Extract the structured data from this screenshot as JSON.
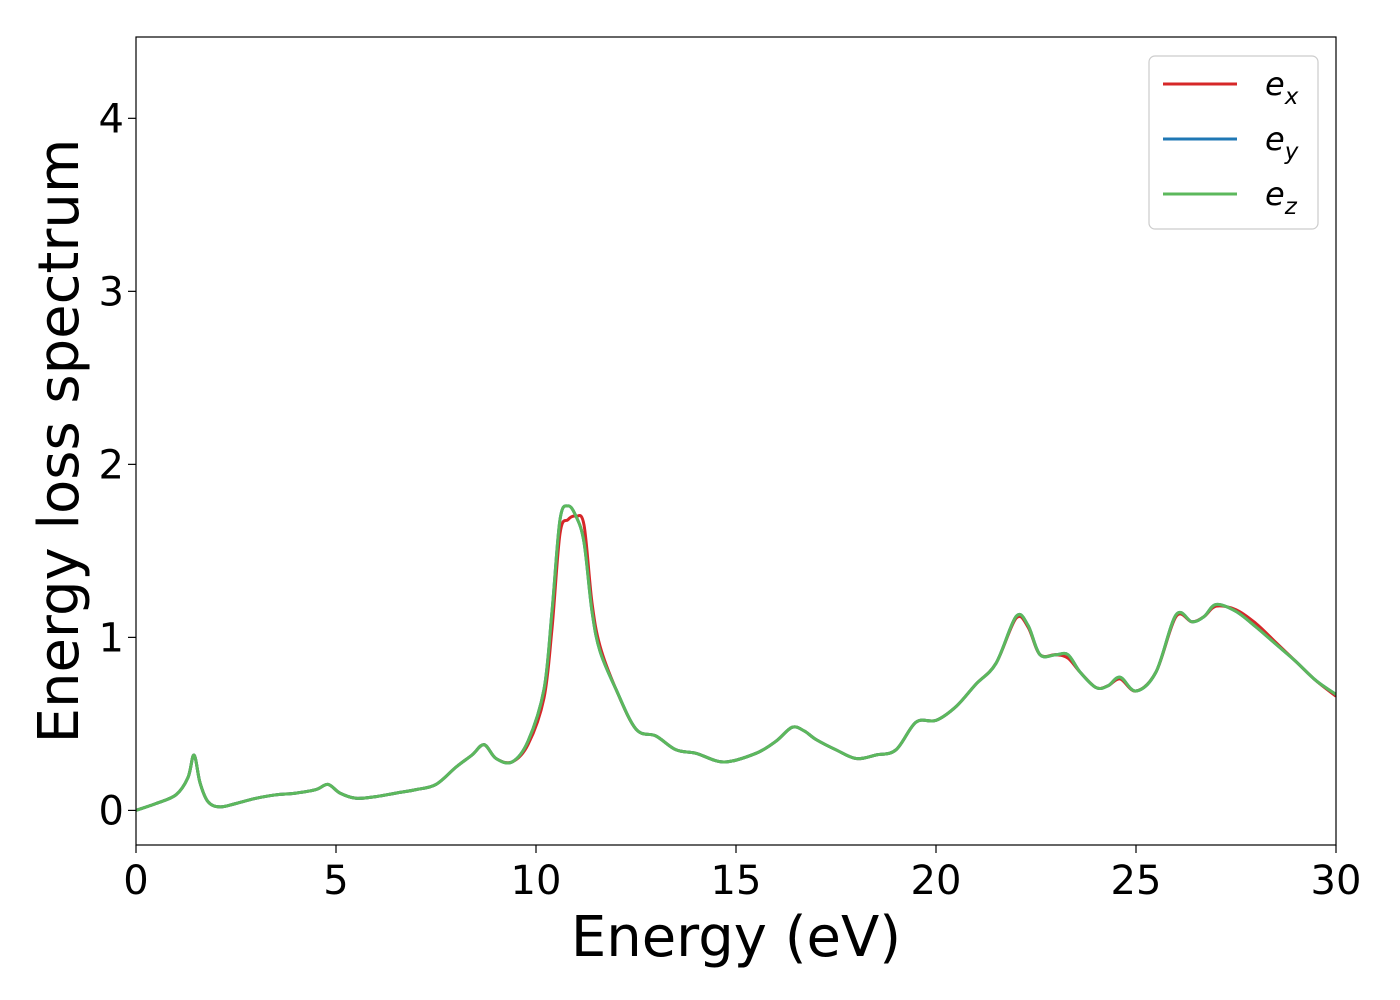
{
  "chart_data": {
    "type": "line",
    "xlabel": "Energy (eV)",
    "ylabel": "Energy loss spectrum",
    "xlim": [
      0,
      30
    ],
    "ylim": [
      -0.2,
      4.47
    ],
    "xticks": [
      0,
      5,
      10,
      15,
      20,
      25,
      30
    ],
    "yticks": [
      0,
      1,
      2,
      3,
      4
    ],
    "grid": false,
    "legend_position": "top-right",
    "series": [
      {
        "name": "e",
        "subscript": "x",
        "color": "#d62728",
        "x": [
          0,
          0.5,
          1.0,
          1.3,
          1.45,
          1.6,
          1.8,
          2.1,
          2.5,
          3.0,
          3.5,
          4.0,
          4.5,
          4.8,
          5.1,
          5.5,
          6.0,
          6.5,
          7.0,
          7.5,
          8.0,
          8.4,
          8.7,
          9.0,
          9.4,
          9.8,
          10.2,
          10.4,
          10.6,
          10.8,
          11.0,
          11.2,
          11.4,
          11.6,
          12.0,
          12.5,
          13.0,
          13.5,
          14.0,
          14.7,
          15.5,
          16.0,
          16.4,
          16.7,
          17.0,
          17.5,
          18.0,
          18.5,
          19.0,
          19.5,
          20.0,
          20.5,
          21.0,
          21.5,
          22.0,
          22.3,
          22.6,
          23.0,
          23.3,
          23.6,
          24.0,
          24.3,
          24.6,
          25.0,
          25.5,
          26.0,
          26.4,
          26.7,
          27.0,
          27.5,
          28.0,
          28.5,
          29.0,
          29.5,
          30.0
        ],
        "values": [
          0.0,
          0.04,
          0.09,
          0.19,
          0.32,
          0.16,
          0.05,
          0.02,
          0.04,
          0.07,
          0.09,
          0.1,
          0.12,
          0.15,
          0.1,
          0.07,
          0.08,
          0.1,
          0.12,
          0.15,
          0.25,
          0.32,
          0.38,
          0.3,
          0.28,
          0.38,
          0.65,
          1.05,
          1.6,
          1.68,
          1.7,
          1.65,
          1.2,
          0.95,
          0.7,
          0.47,
          0.43,
          0.35,
          0.33,
          0.28,
          0.33,
          0.4,
          0.48,
          0.46,
          0.41,
          0.35,
          0.3,
          0.32,
          0.35,
          0.51,
          0.52,
          0.6,
          0.73,
          0.85,
          1.11,
          1.06,
          0.9,
          0.9,
          0.88,
          0.8,
          0.71,
          0.72,
          0.76,
          0.69,
          0.8,
          1.12,
          1.09,
          1.12,
          1.18,
          1.16,
          1.08,
          0.97,
          0.86,
          0.75,
          0.66
        ]
      },
      {
        "name": "e",
        "subscript": "y",
        "color": "#1f77b4",
        "x": [
          0,
          0.5,
          1.0,
          1.3,
          1.45,
          1.6,
          1.8,
          2.1,
          2.5,
          3.0,
          3.5,
          4.0,
          4.5,
          4.8,
          5.1,
          5.5,
          6.0,
          6.5,
          7.0,
          7.5,
          8.0,
          8.4,
          8.7,
          9.0,
          9.4,
          9.8,
          10.2,
          10.4,
          10.6,
          10.8,
          11.0,
          11.2,
          11.4,
          11.6,
          12.0,
          12.5,
          13.0,
          13.5,
          14.0,
          14.7,
          15.5,
          16.0,
          16.4,
          16.7,
          17.0,
          17.5,
          18.0,
          18.5,
          19.0,
          19.5,
          20.0,
          20.5,
          21.0,
          21.5,
          22.0,
          22.3,
          22.6,
          23.0,
          23.3,
          23.6,
          24.0,
          24.3,
          24.6,
          25.0,
          25.5,
          26.0,
          26.4,
          26.7,
          27.0,
          27.5,
          28.0,
          28.5,
          29.0,
          29.5,
          30.0
        ],
        "values": [
          0.0,
          0.04,
          0.09,
          0.19,
          0.32,
          0.16,
          0.05,
          0.02,
          0.04,
          0.07,
          0.09,
          0.1,
          0.12,
          0.15,
          0.1,
          0.07,
          0.08,
          0.1,
          0.12,
          0.15,
          0.25,
          0.32,
          0.38,
          0.3,
          0.28,
          0.4,
          0.7,
          1.15,
          1.68,
          1.76,
          1.7,
          1.55,
          1.15,
          0.92,
          0.7,
          0.47,
          0.43,
          0.35,
          0.33,
          0.28,
          0.33,
          0.4,
          0.48,
          0.46,
          0.41,
          0.35,
          0.3,
          0.32,
          0.35,
          0.51,
          0.52,
          0.6,
          0.73,
          0.85,
          1.12,
          1.07,
          0.9,
          0.9,
          0.9,
          0.8,
          0.71,
          0.72,
          0.77,
          0.69,
          0.8,
          1.13,
          1.09,
          1.12,
          1.19,
          1.15,
          1.06,
          0.96,
          0.86,
          0.75,
          0.67
        ]
      },
      {
        "name": "e",
        "subscript": "z",
        "color": "#5cb85c",
        "x": [
          0,
          0.5,
          1.0,
          1.3,
          1.45,
          1.6,
          1.8,
          2.1,
          2.5,
          3.0,
          3.5,
          4.0,
          4.5,
          4.8,
          5.1,
          5.5,
          6.0,
          6.5,
          7.0,
          7.5,
          8.0,
          8.4,
          8.7,
          9.0,
          9.4,
          9.8,
          10.2,
          10.4,
          10.6,
          10.8,
          11.0,
          11.2,
          11.4,
          11.6,
          12.0,
          12.5,
          13.0,
          13.5,
          14.0,
          14.7,
          15.5,
          16.0,
          16.4,
          16.7,
          17.0,
          17.5,
          18.0,
          18.5,
          19.0,
          19.5,
          20.0,
          20.5,
          21.0,
          21.5,
          22.0,
          22.3,
          22.6,
          23.0,
          23.3,
          23.6,
          24.0,
          24.3,
          24.6,
          25.0,
          25.5,
          26.0,
          26.4,
          26.7,
          27.0,
          27.5,
          28.0,
          28.5,
          29.0,
          29.5,
          30.0
        ],
        "values": [
          0.0,
          0.04,
          0.09,
          0.19,
          0.32,
          0.16,
          0.05,
          0.02,
          0.04,
          0.07,
          0.09,
          0.1,
          0.12,
          0.15,
          0.1,
          0.07,
          0.08,
          0.1,
          0.12,
          0.15,
          0.25,
          0.32,
          0.38,
          0.3,
          0.28,
          0.4,
          0.7,
          1.15,
          1.68,
          1.76,
          1.7,
          1.55,
          1.15,
          0.92,
          0.7,
          0.47,
          0.43,
          0.35,
          0.33,
          0.28,
          0.33,
          0.4,
          0.48,
          0.46,
          0.41,
          0.35,
          0.3,
          0.32,
          0.35,
          0.51,
          0.52,
          0.6,
          0.73,
          0.85,
          1.12,
          1.07,
          0.9,
          0.9,
          0.9,
          0.8,
          0.71,
          0.72,
          0.77,
          0.69,
          0.8,
          1.13,
          1.09,
          1.12,
          1.19,
          1.15,
          1.06,
          0.96,
          0.86,
          0.75,
          0.67
        ]
      }
    ]
  }
}
